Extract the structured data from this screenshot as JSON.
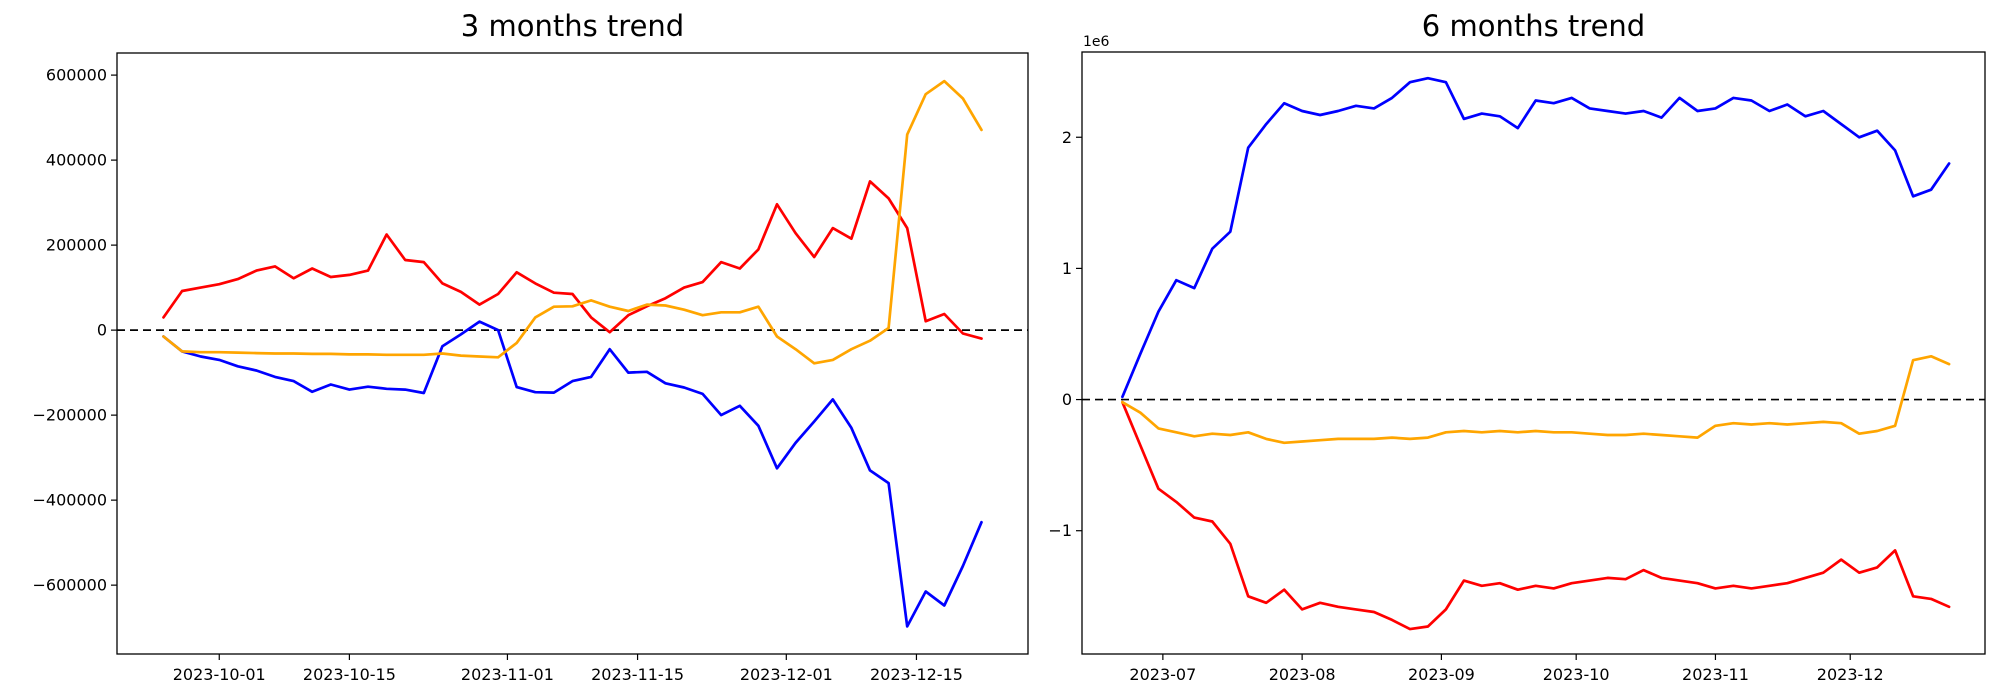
{
  "figure": {
    "background": "#ffffff",
    "text_color": "#000000",
    "axis_color": "#000000",
    "zero_line_color": "#000000"
  },
  "chart_data": [
    {
      "type": "line",
      "title": "3 months trend",
      "grid": false,
      "legend": "none",
      "zero_line": true,
      "xlim": [
        "2023-09-20",
        "2023-12-27"
      ],
      "ylim": [
        -762000,
        652000
      ],
      "yticks": {
        "values": [
          600000,
          400000,
          200000,
          0,
          -200000,
          -400000,
          -600000
        ],
        "labels": [
          "600000",
          "400000",
          "200000",
          "0",
          "−200000",
          "−400000",
          "−600000"
        ]
      },
      "xticks": {
        "values": [
          "2023-10-01",
          "2023-10-15",
          "2023-11-01",
          "2023-11-15",
          "2023-12-01",
          "2023-12-15"
        ],
        "labels": [
          "2023-10-01",
          "2023-10-15",
          "2023-11-01",
          "2023-11-15",
          "2023-12-01",
          "2023-12-15"
        ]
      },
      "x": [
        "2023-09-25",
        "2023-09-27",
        "2023-09-29",
        "2023-10-01",
        "2023-10-03",
        "2023-10-05",
        "2023-10-07",
        "2023-10-09",
        "2023-10-11",
        "2023-10-13",
        "2023-10-15",
        "2023-10-17",
        "2023-10-19",
        "2023-10-21",
        "2023-10-23",
        "2023-10-25",
        "2023-10-27",
        "2023-10-29",
        "2023-10-31",
        "2023-11-02",
        "2023-11-04",
        "2023-11-06",
        "2023-11-08",
        "2023-11-10",
        "2023-11-12",
        "2023-11-14",
        "2023-11-16",
        "2023-11-18",
        "2023-11-20",
        "2023-11-22",
        "2023-11-24",
        "2023-11-26",
        "2023-11-28",
        "2023-11-30",
        "2023-12-02",
        "2023-12-04",
        "2023-12-06",
        "2023-12-08",
        "2023-12-10",
        "2023-12-12",
        "2023-12-14",
        "2023-12-16",
        "2023-12-18",
        "2023-12-20",
        "2023-12-22"
      ],
      "series": [
        {
          "name": "red",
          "color": "#ff0000",
          "values": [
            30000,
            92000,
            100000,
            108000,
            120000,
            140000,
            150000,
            122000,
            145000,
            125000,
            130000,
            140000,
            225000,
            165000,
            160000,
            110000,
            90000,
            60000,
            85000,
            136000,
            110000,
            88000,
            85000,
            30000,
            -5000,
            35000,
            56000,
            75000,
            100000,
            113000,
            160000,
            145000,
            190000,
            296000,
            228000,
            172000,
            240000,
            215000,
            350000,
            310000,
            240000,
            21000,
            38000,
            -8000,
            -20000
          ]
        },
        {
          "name": "blue",
          "color": "#0000ff",
          "values": [
            -15000,
            -50000,
            -62000,
            -70000,
            -85000,
            -95000,
            -110000,
            -120000,
            -145000,
            -128000,
            -140000,
            -133000,
            -138000,
            -140000,
            -148000,
            -38000,
            -10000,
            20000,
            0,
            -134000,
            -146000,
            -147000,
            -120000,
            -110000,
            -45000,
            -100000,
            -98000,
            -125000,
            -135000,
            -150000,
            -200000,
            -178000,
            -225000,
            -325000,
            -265000,
            -215000,
            -163000,
            -230000,
            -330000,
            -360000,
            -697000,
            -615000,
            -648000,
            -555000,
            -452000
          ]
        },
        {
          "name": "orange",
          "color": "#ffa500",
          "values": [
            -15000,
            -50000,
            -52000,
            -52000,
            -53000,
            -54000,
            -55000,
            -55000,
            -56000,
            -56000,
            -57000,
            -57000,
            -58000,
            -58000,
            -58000,
            -55000,
            -60000,
            -62000,
            -64000,
            -30000,
            30000,
            55000,
            56000,
            70000,
            55000,
            45000,
            60000,
            58000,
            48000,
            35000,
            42000,
            42000,
            55000,
            -15000,
            -45000,
            -78000,
            -70000,
            -45000,
            -25000,
            5000,
            460000,
            555000,
            586000,
            545000,
            471000
          ]
        }
      ]
    },
    {
      "type": "line",
      "title": "6 months trend",
      "grid": false,
      "legend": "none",
      "zero_line": true,
      "offset_text": "1e6",
      "xlim": [
        "2023-06-13",
        "2023-12-31"
      ],
      "ylim": [
        -1940000,
        2650000
      ],
      "yticks": {
        "values": [
          2000000,
          1000000,
          0,
          -1000000
        ],
        "labels": [
          "2",
          "1",
          "0",
          "−1"
        ]
      },
      "xticks": {
        "values": [
          "2023-07-01",
          "2023-08-01",
          "2023-09-01",
          "2023-10-01",
          "2023-11-01",
          "2023-12-01"
        ],
        "labels": [
          "2023-07",
          "2023-08",
          "2023-09",
          "2023-10",
          "2023-11",
          "2023-12"
        ]
      },
      "x": [
        "2023-06-22",
        "2023-06-26",
        "2023-06-30",
        "2023-07-04",
        "2023-07-08",
        "2023-07-12",
        "2023-07-16",
        "2023-07-20",
        "2023-07-24",
        "2023-07-28",
        "2023-08-01",
        "2023-08-05",
        "2023-08-09",
        "2023-08-13",
        "2023-08-17",
        "2023-08-21",
        "2023-08-25",
        "2023-08-29",
        "2023-09-02",
        "2023-09-06",
        "2023-09-10",
        "2023-09-14",
        "2023-09-18",
        "2023-09-22",
        "2023-09-26",
        "2023-09-30",
        "2023-10-04",
        "2023-10-08",
        "2023-10-12",
        "2023-10-16",
        "2023-10-20",
        "2023-10-24",
        "2023-10-28",
        "2023-11-01",
        "2023-11-05",
        "2023-11-09",
        "2023-11-13",
        "2023-11-17",
        "2023-11-21",
        "2023-11-25",
        "2023-11-29",
        "2023-12-03",
        "2023-12-07",
        "2023-12-11",
        "2023-12-15",
        "2023-12-19",
        "2023-12-23"
      ],
      "series": [
        {
          "name": "red",
          "color": "#ff0000",
          "values": [
            -20000,
            -350000,
            -680000,
            -780000,
            -900000,
            -930000,
            -1100000,
            -1500000,
            -1550000,
            -1450000,
            -1600000,
            -1550000,
            -1580000,
            -1600000,
            -1620000,
            -1680000,
            -1750000,
            -1730000,
            -1600000,
            -1380000,
            -1420000,
            -1400000,
            -1450000,
            -1420000,
            -1440000,
            -1400000,
            -1380000,
            -1360000,
            -1370000,
            -1300000,
            -1360000,
            -1380000,
            -1400000,
            -1440000,
            -1420000,
            -1440000,
            -1420000,
            -1400000,
            -1360000,
            -1320000,
            -1220000,
            -1320000,
            -1280000,
            -1150000,
            -1500000,
            -1520000,
            -1580000
          ]
        },
        {
          "name": "blue",
          "color": "#0000ff",
          "values": [
            20000,
            350000,
            670000,
            910000,
            850000,
            1150000,
            1280000,
            1920000,
            2100000,
            2260000,
            2200000,
            2170000,
            2200000,
            2240000,
            2220000,
            2300000,
            2420000,
            2450000,
            2420000,
            2140000,
            2180000,
            2160000,
            2070000,
            2280000,
            2260000,
            2300000,
            2220000,
            2200000,
            2180000,
            2200000,
            2150000,
            2300000,
            2200000,
            2220000,
            2300000,
            2280000,
            2200000,
            2250000,
            2160000,
            2200000,
            2100000,
            2000000,
            2050000,
            1900000,
            1550000,
            1600000,
            1800000
          ]
        },
        {
          "name": "orange",
          "color": "#ffa500",
          "values": [
            -20000,
            -100000,
            -220000,
            -250000,
            -280000,
            -260000,
            -270000,
            -250000,
            -300000,
            -330000,
            -320000,
            -310000,
            -300000,
            -300000,
            -300000,
            -290000,
            -300000,
            -290000,
            -250000,
            -240000,
            -250000,
            -240000,
            -250000,
            -240000,
            -250000,
            -250000,
            -260000,
            -270000,
            -270000,
            -260000,
            -270000,
            -280000,
            -290000,
            -200000,
            -180000,
            -190000,
            -180000,
            -190000,
            -180000,
            -170000,
            -180000,
            -260000,
            -240000,
            -200000,
            300000,
            330000,
            270000
          ]
        }
      ]
    }
  ]
}
